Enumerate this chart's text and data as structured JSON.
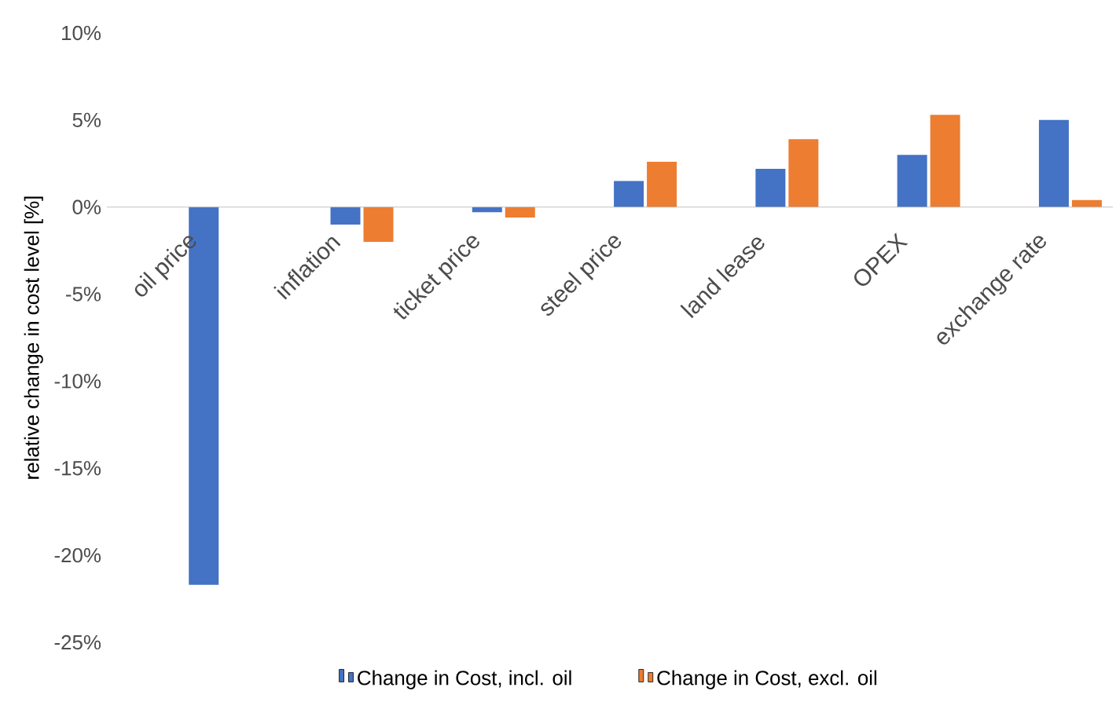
{
  "chart_data": {
    "type": "bar",
    "ylabel": "relative change in cost level [%]",
    "categories": [
      "oil price",
      "inflation",
      "ticket price",
      "steel price",
      "land lease",
      "OPEX",
      "exchange rate"
    ],
    "series": [
      {
        "name": "Change in Cost, incl. oil",
        "color": "#4472c4",
        "values": [
          -21.7,
          -1.0,
          -0.3,
          1.5,
          2.2,
          3.0,
          5.0
        ]
      },
      {
        "name": "Change in Cost, excl. oil",
        "color": "#ed7d31",
        "values": [
          0,
          -2.0,
          -0.6,
          2.6,
          3.9,
          5.3,
          0.4
        ]
      }
    ],
    "ylim": [
      -25,
      10
    ],
    "yticks": [
      {
        "value": -25,
        "label": "-25%"
      },
      {
        "value": -20,
        "label": "-20%"
      },
      {
        "value": -15,
        "label": "-15%"
      },
      {
        "value": -10,
        "label": "-10%"
      },
      {
        "value": -5,
        "label": "-5%"
      },
      {
        "value": 0,
        "label": "0%"
      },
      {
        "value": 5,
        "label": "5%"
      },
      {
        "value": 10,
        "label": "10%"
      }
    ],
    "legend": "bottom"
  }
}
